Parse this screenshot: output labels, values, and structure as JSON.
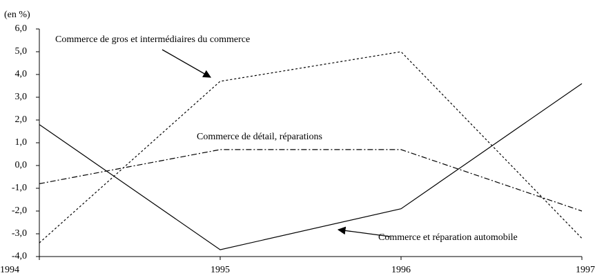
{
  "chart_data": {
    "type": "line",
    "y_label": "(en %)",
    "categories": [
      "1994",
      "1995",
      "1996",
      "1997"
    ],
    "series": [
      {
        "name": "Commerce de gros et intermédiaires du commerce",
        "color": "#000000",
        "dash": "3,3",
        "values": [
          -3.4,
          3.7,
          5.0,
          -3.2
        ]
      },
      {
        "name": "Commerce de détail, réparations",
        "color": "#000000",
        "dash": "8,3,2,3",
        "values": [
          -0.8,
          0.7,
          0.7,
          -2.0
        ]
      },
      {
        "name": "Commerce et réparation automobile",
        "color": "#000000",
        "dash": "none",
        "values": [
          1.8,
          -3.7,
          -1.9,
          3.6
        ]
      }
    ],
    "ylim": [
      -4,
      6
    ],
    "yticks": [
      {
        "value": -4,
        "label": "-4,0"
      },
      {
        "value": -3,
        "label": "-3,0"
      },
      {
        "value": -2,
        "label": "-2,0"
      },
      {
        "value": -1,
        "label": "-1,0"
      },
      {
        "value": 0,
        "label": "0,0"
      },
      {
        "value": 1,
        "label": "1,0"
      },
      {
        "value": 2,
        "label": "2,0"
      },
      {
        "value": 3,
        "label": "3,0"
      },
      {
        "value": 4,
        "label": "4,0"
      },
      {
        "value": 5,
        "label": "5,0"
      },
      {
        "value": 6,
        "label": "6,0"
      }
    ]
  }
}
